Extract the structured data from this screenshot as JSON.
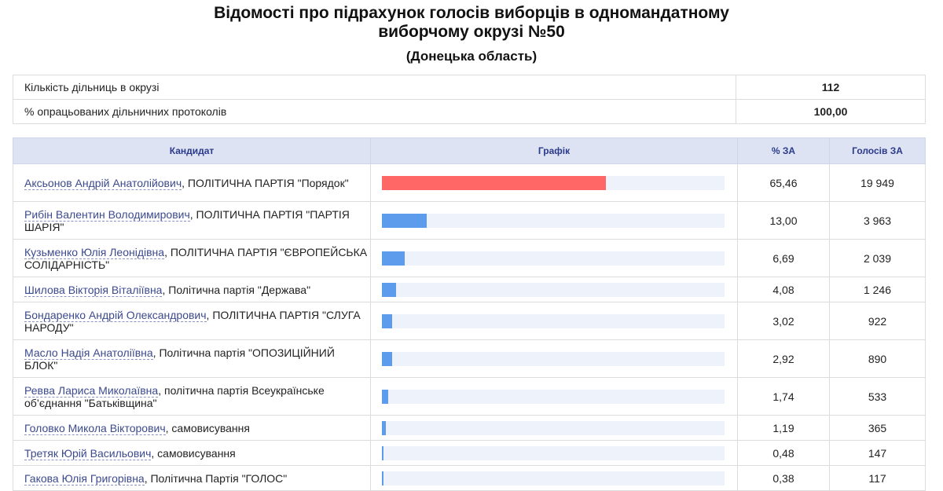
{
  "header": {
    "title_line1": "Відомості про підрахунок голосів виборців в одномандатному",
    "title_line2": "виборчому окрузі №50",
    "subtitle": "(Донецька область)"
  },
  "stats": [
    {
      "label": "Кількість дільниць в окрузі",
      "value": "112"
    },
    {
      "label": "% опрацьованих дільничних протоколів",
      "value": "100,00"
    }
  ],
  "table": {
    "headers": {
      "candidate": "Кандидат",
      "graph": "Графік",
      "pct": "% ЗА",
      "votes": "Голосів ЗА"
    },
    "leader_color": "#ff6666",
    "other_color": "#5d9cec",
    "track_color": "#eef2fb",
    "rows": [
      {
        "name": "Аксьонов Андрій Анатолійович",
        "party": ", ПОЛІТИЧНА ПАРТІЯ \"Порядок\"",
        "pct": "65,46",
        "share": 65.46,
        "votes": "19 949",
        "leader": true
      },
      {
        "name": "Рибін Валентин Володимирович",
        "party": ", ПОЛІТИЧНА ПАРТІЯ \"ПАРТІЯ ШАРІЯ\"",
        "pct": "13,00",
        "share": 13.0,
        "votes": "3 963",
        "leader": false
      },
      {
        "name": "Кузьменко Юлія Леонідівна",
        "party": ", ПОЛІТИЧНА ПАРТІЯ \"ЄВРОПЕЙСЬКА СОЛІДАРНІСТЬ\"",
        "pct": "6,69",
        "share": 6.69,
        "votes": "2 039",
        "leader": false
      },
      {
        "name": "Шилова Вікторія Віталіївна",
        "party": ", Політична партія \"Держава\"",
        "pct": "4,08",
        "share": 4.08,
        "votes": "1 246",
        "leader": false
      },
      {
        "name": "Бондаренко Андрій Олександрович",
        "party": ", ПОЛІТИЧНА ПАРТІЯ \"СЛУГА НАРОДУ\"",
        "pct": "3,02",
        "share": 3.02,
        "votes": "922",
        "leader": false
      },
      {
        "name": "Масло Надія Анатоліївна",
        "party": ", Політична партія \"ОПОЗИЦІЙНИЙ БЛОК\"",
        "pct": "2,92",
        "share": 2.92,
        "votes": "890",
        "leader": false
      },
      {
        "name": "Ревва Лариса Миколаївна",
        "party": ", політична партія Всеукраїнське об’єднання \"Батьківщина\"",
        "pct": "1,74",
        "share": 1.74,
        "votes": "533",
        "leader": false
      },
      {
        "name": "Головко Микола Вікторович",
        "party": ", самовисування",
        "pct": "1,19",
        "share": 1.19,
        "votes": "365",
        "leader": false
      },
      {
        "name": "Третяк Юрій Васильович",
        "party": ", самовисування",
        "pct": "0,48",
        "share": 0.48,
        "votes": "147",
        "leader": false
      },
      {
        "name": "Гакова Юлія Григорівна",
        "party": ", Політична Партія \"ГОЛОС\"",
        "pct": "0,38",
        "share": 0.38,
        "votes": "117",
        "leader": false
      }
    ]
  }
}
